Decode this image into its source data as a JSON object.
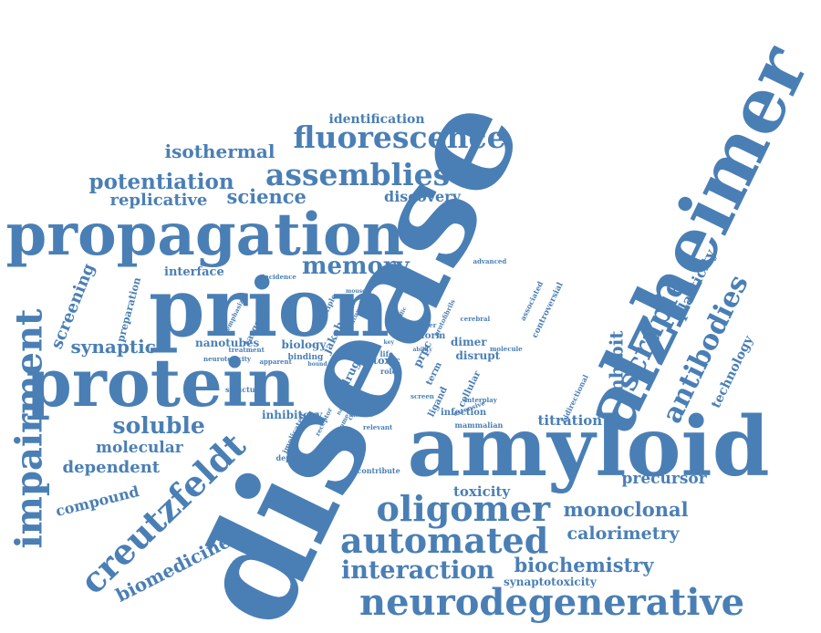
{
  "color": "#4a7fb5",
  "background": "#ffffff",
  "words": [
    "disease",
    "alzheimer",
    "amyloid",
    "prion",
    "protein",
    "propagation",
    "neurodegenerative",
    "impairment",
    "creutzfeldt",
    "oligomer",
    "automated",
    "assemblies",
    "fluorescence",
    "scrapie",
    "antibodies",
    "interaction",
    "biochemistry",
    "memory",
    "soluble",
    "isothermal",
    "potentiation",
    "science",
    "replicative",
    "discovery",
    "identification",
    "synaptic",
    "screening",
    "monoclonal",
    "calorimetry",
    "compound",
    "biomedicine",
    "molecular",
    "dependent",
    "precursor",
    "toxicity",
    "plasticity",
    "technology",
    "inhibit",
    "titration",
    "nanotubes",
    "biology",
    "jakob",
    "interface",
    "preparation",
    "targeted",
    "inhibitory",
    "dimer",
    "disrupt",
    "cell",
    "drug",
    "toxic",
    "effect",
    "infection",
    "prpc",
    "cellular",
    "ligand",
    "form",
    "synaptotoxicity",
    "mammalian",
    "bidirectional",
    "associated",
    "controversial",
    "advanced",
    "incidence",
    "multiple",
    "emphasize",
    "treatment",
    "neurotoxicity",
    "binding",
    "implicated",
    "receptor",
    "oligomeric",
    "certain",
    "deposition",
    "contribute",
    "structure",
    "block",
    "role",
    "term",
    "life",
    "manner",
    "cerebral",
    "protofibrils",
    "molecule",
    "extensive",
    "interplay",
    "relevant",
    "apparent",
    "bound",
    "distinct",
    "mouse",
    "feature",
    "nature",
    "screen",
    "ability",
    "common",
    "sporadic",
    "key",
    "alter"
  ]
}
